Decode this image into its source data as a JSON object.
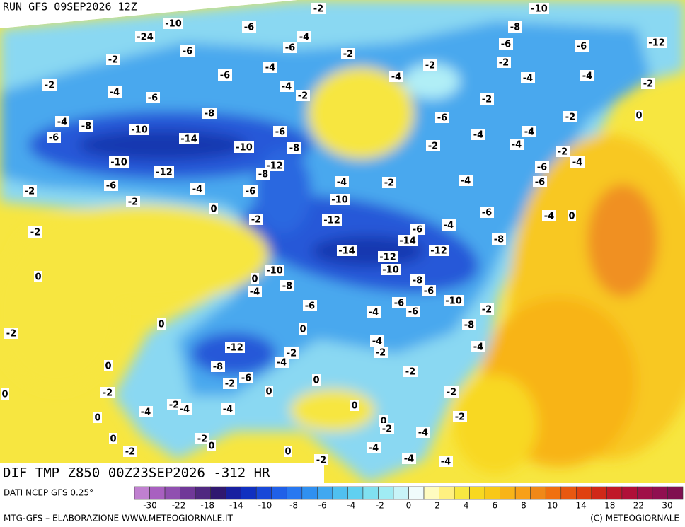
{
  "header": {
    "run": "RUN GFS 09SEP2026 12Z"
  },
  "map": {
    "title": "DIF TMP Z850 00Z23SEP2026 -312 HR"
  },
  "contour_labels": [
    -2,
    -10,
    -10,
    -6,
    -24,
    -4,
    -8,
    -6,
    -6,
    -2,
    -6,
    -6,
    -12,
    -2,
    -4,
    -2,
    -2,
    -6,
    -4,
    -4,
    -4,
    -2,
    -4,
    -6,
    -4,
    -2,
    -2,
    -2,
    -8,
    -6,
    -2,
    0,
    -4,
    -8,
    -10,
    -14,
    -6,
    -4,
    -4,
    -6,
    -10,
    -8,
    -2,
    -4,
    -2,
    -10,
    -12,
    -12,
    -8,
    -6,
    -4,
    -2,
    -6,
    -4,
    -6,
    -4,
    -2,
    -4,
    -6,
    -2,
    0,
    -10,
    -6,
    -4,
    0,
    -2,
    -2,
    -12,
    -6,
    -4,
    -14,
    -12,
    -8,
    -14,
    -12,
    -10,
    -10,
    0,
    0,
    -8,
    -8,
    -6,
    -4,
    -10,
    -6,
    -4,
    -6,
    -6,
    -2,
    0,
    0,
    -8,
    -2,
    -4,
    -12,
    -4,
    -2,
    -2,
    0,
    -8,
    -4,
    -2,
    -6,
    -2,
    0,
    -2,
    0,
    -2,
    0,
    -2,
    -4,
    -4,
    0,
    -4,
    0,
    -2,
    0,
    -2,
    -4,
    0,
    -2,
    0,
    -4,
    -2,
    0,
    -4,
    -4,
    -2
  ],
  "footer": {
    "source": "DATI NCEP GFS 0.25°",
    "credit": "MTG-GFS – ELABORAZIONE WWW.METEOGIORNALE.IT",
    "copyright": "(C) METEOGIORNALE"
  },
  "colorbar": {
    "ticks": [
      -30,
      -22,
      -18,
      -14,
      -10,
      -8,
      -6,
      -4,
      -2,
      0,
      2,
      4,
      6,
      8,
      10,
      14,
      18,
      22,
      30
    ],
    "colors": [
      "#c080d0",
      "#a860c0",
      "#9050b0",
      "#703898",
      "#502880",
      "#301870",
      "#1820a0",
      "#1030c0",
      "#1848d8",
      "#2060e8",
      "#2878f0",
      "#3090f0",
      "#40a8f0",
      "#50c0f0",
      "#60d0f0",
      "#80e0f0",
      "#a0ecf4",
      "#c8f4f8",
      "#f0fcfc",
      "#fffcc0",
      "#fff080",
      "#f8e840",
      "#f8d820",
      "#f8c818",
      "#f8b418",
      "#f8a018",
      "#f08818",
      "#f07010",
      "#e85810",
      "#e04010",
      "#d02818",
      "#c01828",
      "#b01038",
      "#a01048",
      "#901050",
      "#801050"
    ]
  }
}
